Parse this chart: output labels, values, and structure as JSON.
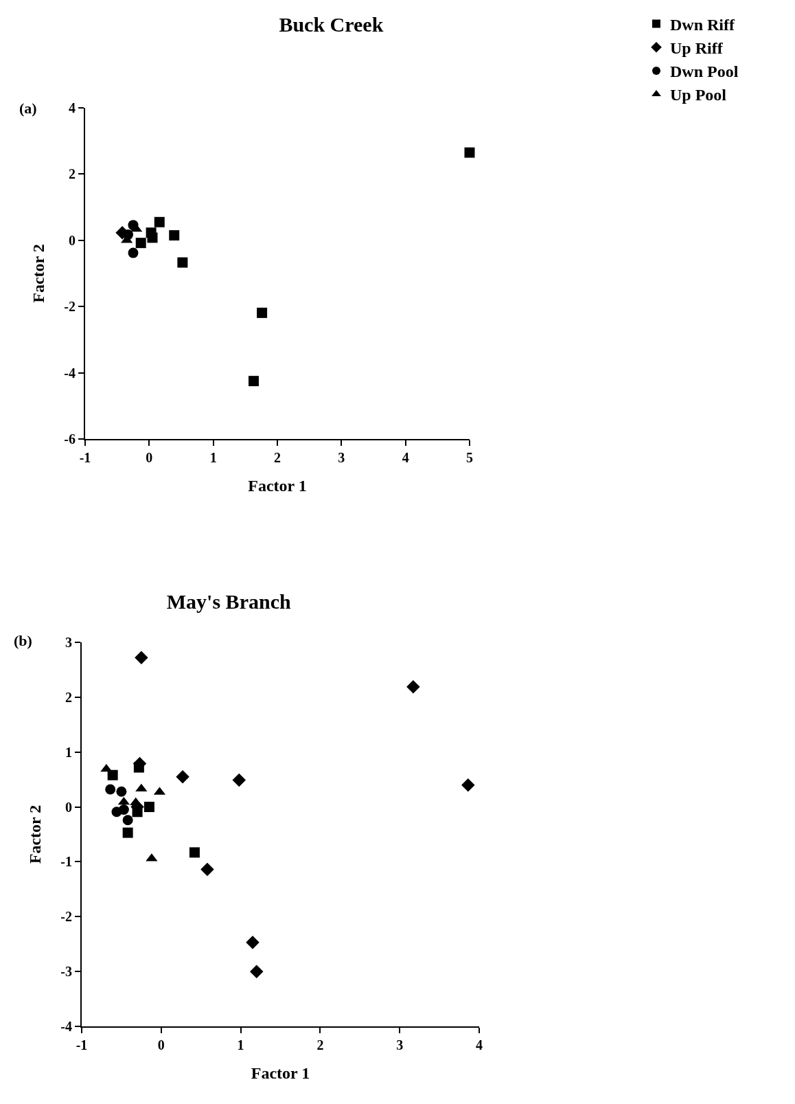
{
  "chart_data": [
    {
      "type": "scatter",
      "title": "Buck Creek",
      "xlabel": "Factor 1",
      "ylabel": "Factor 2",
      "annotations": [
        "(a)"
      ],
      "xlim": [
        -1,
        5
      ],
      "xticks": [
        -1,
        0,
        1,
        2,
        3,
        4,
        5
      ],
      "ylim": [
        -6,
        4
      ],
      "yticks": [
        -6,
        -4,
        -2,
        0,
        2,
        4
      ],
      "grid": false,
      "legend": "top right",
      "series": [
        {
          "name": "Dwn Riff",
          "color": "#000000",
          "marker": "square",
          "x": [
            5.0,
            0.16,
            0.39,
            0.03,
            0.05,
            0.52,
            1.76,
            1.63,
            -0.13
          ],
          "values": [
            2.65,
            0.55,
            0.15,
            0.23,
            0.08,
            -0.67,
            -2.19,
            -4.25,
            -0.08
          ]
        },
        {
          "name": "Up Riff",
          "color": "#000000",
          "marker": "diamond",
          "x": [
            -0.42
          ],
          "values": [
            0.23
          ]
        },
        {
          "name": "Dwn Pool",
          "color": "#000000",
          "marker": "circle",
          "x": [
            -0.25,
            -0.25,
            -0.33
          ],
          "values": [
            0.46,
            -0.38,
            0.17
          ]
        },
        {
          "name": "Up Pool",
          "color": "#000000",
          "marker": "triangle",
          "x": [
            -0.2,
            -0.35
          ],
          "values": [
            0.34,
            0.0
          ]
        }
      ]
    },
    {
      "type": "scatter",
      "title": "May's Branch",
      "xlabel": "Factor 1",
      "ylabel": "Factor 2",
      "annotations": [
        "(b)"
      ],
      "xlim": [
        -1,
        4
      ],
      "xticks": [
        -1,
        0,
        1,
        2,
        3,
        4
      ],
      "ylim": [
        -4,
        3
      ],
      "yticks": [
        -4,
        -3,
        -2,
        -1,
        0,
        1,
        2,
        3
      ],
      "grid": false,
      "series": [
        {
          "color": "#000000",
          "marker": "square",
          "x": [
            -0.61,
            -0.28,
            -0.15,
            -0.42,
            0.42,
            -0.3
          ],
          "values": [
            0.58,
            0.72,
            0.0,
            -0.47,
            -0.83,
            -0.09
          ]
        },
        {
          "color": "#000000",
          "marker": "diamond",
          "x": [
            -0.25,
            3.17,
            3.86,
            0.27,
            0.98,
            0.58,
            1.15,
            1.2,
            -0.27,
            -0.3
          ],
          "values": [
            2.72,
            2.19,
            0.4,
            0.55,
            0.49,
            -1.14,
            -2.47,
            -3.0,
            0.79,
            0.0
          ]
        },
        {
          "color": "#000000",
          "marker": "circle",
          "x": [
            -0.64,
            -0.5,
            -0.56,
            -0.42,
            -0.47
          ],
          "values": [
            0.32,
            0.28,
            -0.09,
            -0.24,
            -0.05
          ]
        },
        {
          "color": "#000000",
          "marker": "triangle",
          "x": [
            -0.69,
            -0.25,
            -0.02,
            -0.47,
            -0.12,
            -0.32
          ],
          "values": [
            0.69,
            0.33,
            0.27,
            0.09,
            -0.94,
            0.08
          ]
        }
      ]
    }
  ]
}
